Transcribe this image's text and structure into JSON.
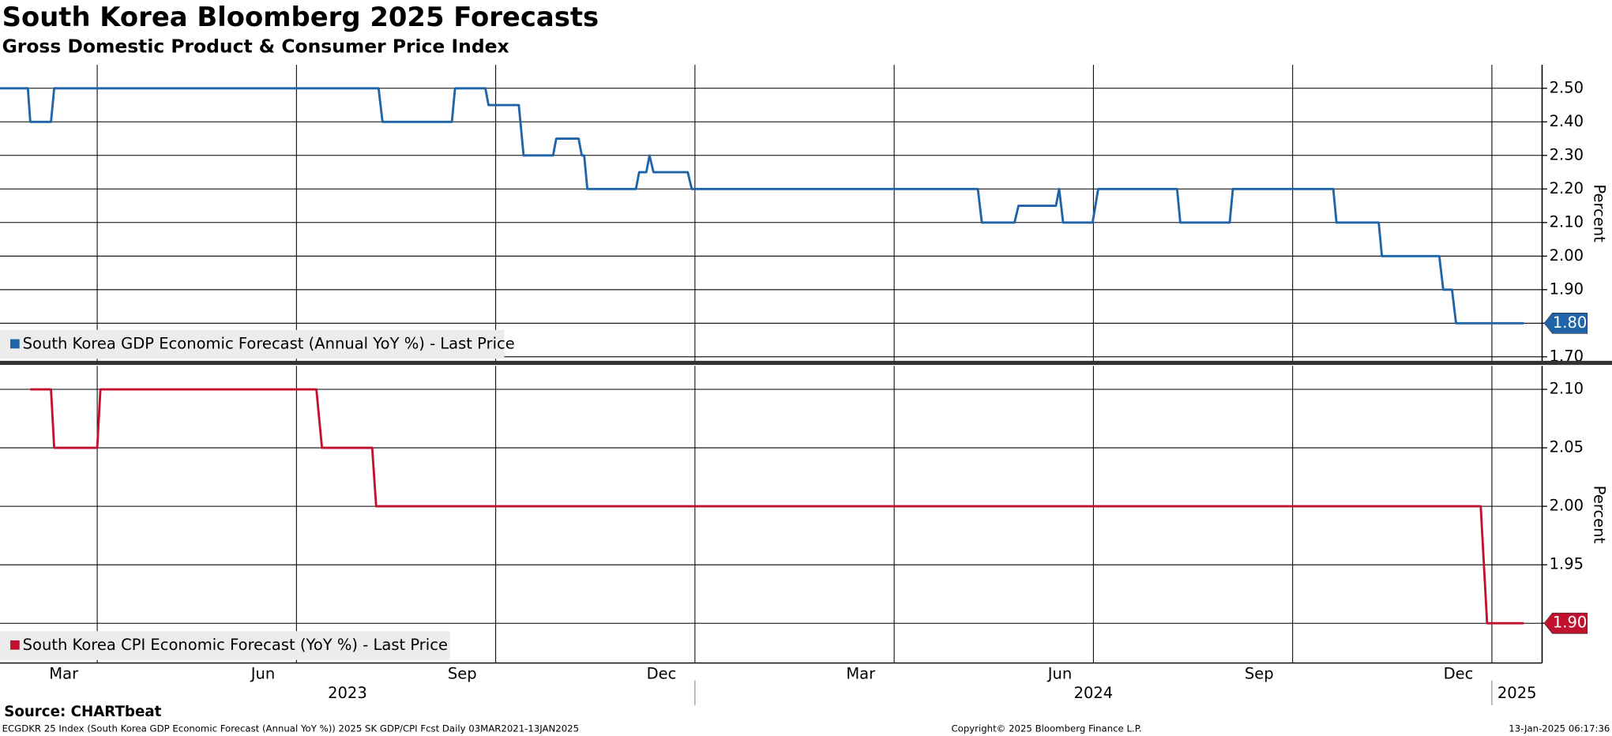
{
  "title": "South Korea Bloomberg 2025 Forecasts",
  "subtitle": "Gross Domestic Product & Consumer Price Index",
  "source": "Source: CHARTbeat",
  "footer": {
    "left": "ECGDKR 25 Index (South Korea GDP Economic Forecast (Annual YoY %)) 2025 SK GDP/CPI Fcst  Daily 03MAR2021-13JAN2025",
    "center": "Copyright© 2025 Bloomberg Finance L.P.",
    "right": "13-Jan-2025 06:17:36"
  },
  "x_axis": {
    "xlim": [
      2023.128,
      2025.063
    ],
    "xticks": [
      {
        "value": 2023.208,
        "label": "Mar"
      },
      {
        "value": 2023.458,
        "label": "Jun"
      },
      {
        "value": 2023.708,
        "label": "Sep"
      },
      {
        "value": 2023.958,
        "label": "Dec"
      },
      {
        "value": 2024.208,
        "label": "Mar"
      },
      {
        "value": 2024.458,
        "label": "Jun"
      },
      {
        "value": 2024.708,
        "label": "Sep"
      },
      {
        "value": 2024.958,
        "label": "Dec"
      }
    ],
    "xgrid": [
      2023.25,
      2023.5,
      2023.75,
      2024.0,
      2024.25,
      2024.5,
      2024.75,
      2025.0
    ],
    "years": [
      2023,
      2024,
      2025
    ]
  },
  "chart_data": [
    {
      "type": "line",
      "ylabel": "Percent",
      "grid": true,
      "ylim": [
        1.685,
        2.57
      ],
      "yticks": [
        {
          "value": 2.5,
          "label": "2.50"
        },
        {
          "value": 2.4,
          "label": "2.40"
        },
        {
          "value": 2.3,
          "label": "2.30"
        },
        {
          "value": 2.2,
          "label": "2.20"
        },
        {
          "value": 2.1,
          "label": "2.10"
        },
        {
          "value": 2.0,
          "label": "2.00"
        },
        {
          "value": 1.9,
          "label": "1.90"
        },
        {
          "value": 1.8,
          "label": "1.80"
        },
        {
          "value": 1.7,
          "label": "1.70"
        }
      ],
      "series": [
        {
          "name": "South Korea GDP Economic Forecast (Annual YoY %) - Last Price",
          "color": "#1f63a8",
          "last_label": "1.80",
          "x": [
            2023.128,
            2023.163,
            2023.166,
            2023.192,
            2023.196,
            2023.603,
            2023.608,
            2023.695,
            2023.699,
            2023.737,
            2023.741,
            2023.779,
            2023.785,
            2023.822,
            2023.826,
            2023.854,
            2023.858,
            2023.861,
            2023.865,
            2023.926,
            2023.93,
            2023.939,
            2023.943,
            2023.948,
            2023.991,
            2023.996,
            2024.355,
            2024.36,
            2024.401,
            2024.406,
            2024.453,
            2024.457,
            2024.462,
            2024.499,
            2024.506,
            2024.605,
            2024.609,
            2024.671,
            2024.675,
            2024.801,
            2024.805,
            2024.858,
            2024.862,
            2024.934,
            2024.939,
            2024.95,
            2024.955,
            2025.04
          ],
          "values": [
            2.5,
            2.5,
            2.4,
            2.4,
            2.5,
            2.5,
            2.4,
            2.4,
            2.5,
            2.5,
            2.45,
            2.45,
            2.3,
            2.3,
            2.35,
            2.35,
            2.3,
            2.3,
            2.2,
            2.2,
            2.25,
            2.25,
            2.3,
            2.25,
            2.25,
            2.2,
            2.2,
            2.1,
            2.1,
            2.15,
            2.15,
            2.2,
            2.1,
            2.1,
            2.2,
            2.2,
            2.1,
            2.1,
            2.2,
            2.2,
            2.1,
            2.1,
            2.0,
            2.0,
            1.9,
            1.9,
            1.8,
            1.8
          ]
        }
      ]
    },
    {
      "type": "line",
      "ylabel": "Percent",
      "grid": true,
      "ylim": [
        1.866,
        2.12
      ],
      "yticks": [
        {
          "value": 2.1,
          "label": "2.10"
        },
        {
          "value": 2.05,
          "label": "2.05"
        },
        {
          "value": 2.0,
          "label": "2.00"
        },
        {
          "value": 1.95,
          "label": "1.95"
        },
        {
          "value": 1.9,
          "label": "1.90"
        }
      ],
      "series": [
        {
          "name": "South Korea CPI Economic Forecast (YoY %) - Last Price",
          "color": "#c2112e",
          "last_label": "1.90",
          "x": [
            2023.166,
            2023.192,
            2023.196,
            2023.25,
            2023.254,
            2023.525,
            2023.532,
            2023.595,
            2023.6,
            2024.986,
            2024.994,
            2025.04
          ],
          "values": [
            2.1,
            2.1,
            2.05,
            2.05,
            2.1,
            2.1,
            2.05,
            2.05,
            2.0,
            2.0,
            1.9,
            1.9
          ]
        }
      ]
    }
  ]
}
